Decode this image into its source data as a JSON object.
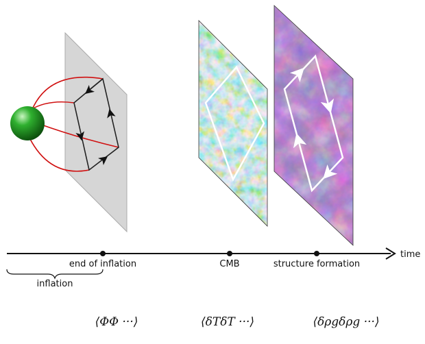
{
  "timeline": {
    "events": [
      "end of inflation",
      "CMB",
      "structure formation"
    ],
    "axis_label": "time",
    "period_label": "inflation"
  },
  "correlators": [
    "⟨ΦΦ ···⟩",
    "⟨δTδT ···⟩",
    "⟨δρgδρg ···⟩"
  ]
}
